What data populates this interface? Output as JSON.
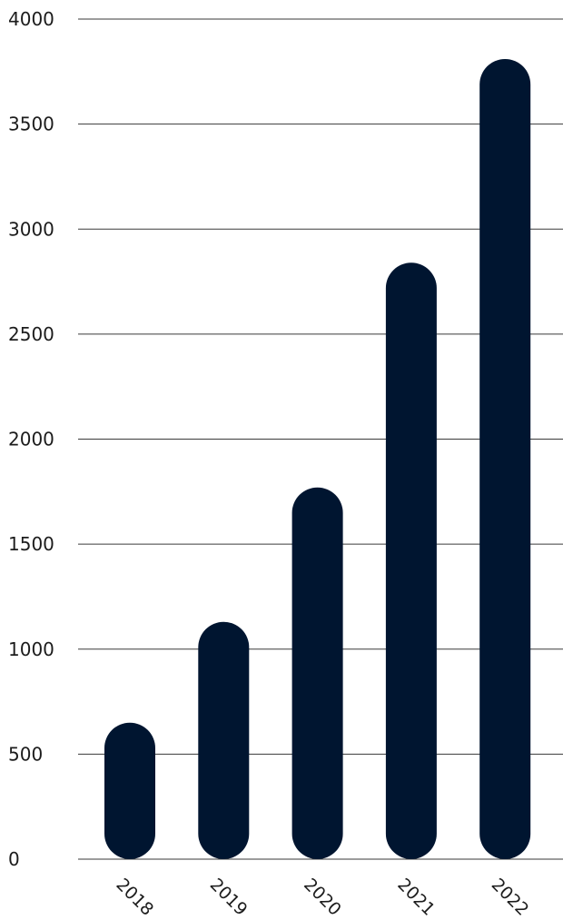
{
  "chart_data": {
    "type": "bar",
    "categories": [
      "2018",
      "2019",
      "2020",
      "2021",
      "2022"
    ],
    "values": [
      650,
      1130,
      1770,
      2840,
      3810
    ],
    "ylim": [
      0,
      4000
    ],
    "yticks": [
      0,
      500,
      1000,
      1500,
      2000,
      2500,
      3000,
      3500,
      4000
    ],
    "grid": true,
    "bar_color": "#001530",
    "bar_style": "rounded-pill",
    "x_tick_rotation": "45deg"
  }
}
